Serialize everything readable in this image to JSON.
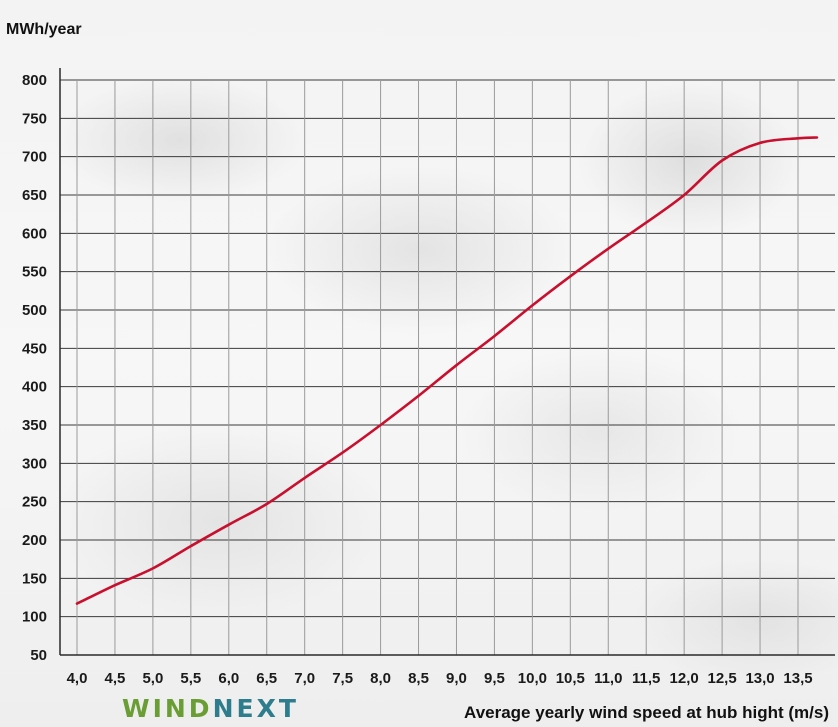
{
  "chart_data": {
    "type": "line",
    "ylabel": "MWh/year",
    "xlabel": "Average yearly wind speed at hub hight (m/s)",
    "ylim": [
      50,
      800
    ],
    "xlim": [
      4.0,
      13.75
    ],
    "yticks": [
      50,
      100,
      150,
      200,
      250,
      300,
      350,
      400,
      450,
      500,
      550,
      600,
      650,
      700,
      750,
      800
    ],
    "xticks": [
      4.0,
      4.5,
      5.0,
      5.5,
      6.0,
      6.5,
      7.0,
      7.5,
      8.0,
      8.5,
      9.0,
      9.5,
      10.0,
      10.5,
      11.0,
      11.5,
      12.0,
      12.5,
      13.0,
      13.5
    ],
    "xtick_labels": [
      "4,0",
      "4,5",
      "5,0",
      "5,5",
      "6,0",
      "6,5",
      "7,0",
      "7,5",
      "8,0",
      "8,5",
      "9,0",
      "9,5",
      "10,0",
      "10,5",
      "11,0",
      "11,5",
      "12,0",
      "12,5",
      "13,0",
      "13,5"
    ],
    "grid": true,
    "series": [
      {
        "color": "#c8102e",
        "x": [
          4.0,
          4.5,
          5.0,
          5.5,
          6.0,
          6.5,
          7.0,
          7.5,
          8.0,
          8.5,
          9.0,
          9.5,
          10.0,
          10.5,
          11.0,
          11.5,
          12.0,
          12.5,
          13.0,
          13.5,
          13.75
        ],
        "y": [
          117,
          141,
          163,
          192,
          220,
          247,
          281,
          314,
          350,
          388,
          428,
          466,
          506,
          544,
          580,
          614,
          650,
          695,
          718,
          724,
          725
        ]
      }
    ]
  },
  "logo": {
    "wind": "WIND",
    "next": "NEXT"
  }
}
